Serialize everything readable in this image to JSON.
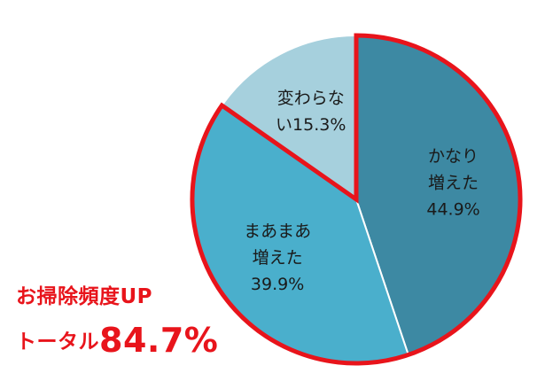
{
  "chart_data": {
    "type": "pie",
    "slices": [
      {
        "label_lines": [
          "かなり",
          "増えた"
        ],
        "pct_text": "44.9%",
        "value": 44.9,
        "color": "#3d89a3",
        "highlighted": true
      },
      {
        "label_lines": [
          "まあまあ",
          "増えた"
        ],
        "pct_text": "39.9%",
        "value": 39.9,
        "color": "#4aafcc",
        "highlighted": true
      },
      {
        "label_lines": [
          "変わらな",
          "い15.3%"
        ],
        "pct_text": "",
        "value": 15.3,
        "color": "#a6d0dd",
        "highlighted": false
      }
    ],
    "highlight_color": "#e8141b"
  },
  "callout": {
    "line1": "お掃除頻度UP",
    "line2_prefix": "トータル",
    "line2_value": "84.7%"
  }
}
